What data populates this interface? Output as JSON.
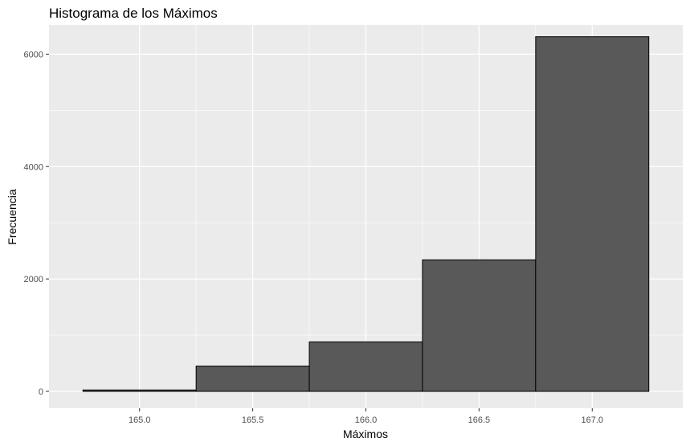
{
  "chart_data": {
    "type": "bar",
    "title": "Histograma de los Máximos",
    "xlabel": "Máximos",
    "ylabel": "Frecuencia",
    "bins": [
      {
        "x0": 164.75,
        "x1": 165.25,
        "count": 25
      },
      {
        "x0": 165.25,
        "x1": 165.75,
        "count": 450
      },
      {
        "x0": 165.75,
        "x1": 166.25,
        "count": 880
      },
      {
        "x0": 166.25,
        "x1": 166.75,
        "count": 2340
      },
      {
        "x0": 166.75,
        "x1": 167.25,
        "count": 6310
      }
    ],
    "xlim": [
      164.6,
      167.4
    ],
    "ylim": [
      -300,
      6520
    ],
    "x_ticks": [
      165.0,
      165.5,
      166.0,
      166.5,
      167.0
    ],
    "x_tick_labels": [
      "165.0",
      "165.5",
      "166.0",
      "166.5",
      "167.0"
    ],
    "x_minor_ticks": [
      165.25,
      165.75,
      166.25,
      166.75
    ],
    "y_ticks": [
      0,
      2000,
      4000,
      6000
    ],
    "y_tick_labels": [
      "0",
      "2000",
      "4000",
      "6000"
    ],
    "y_minor_ticks": [
      1000,
      3000,
      5000
    ],
    "grid": true,
    "colors": {
      "panel": "#ebebeb",
      "grid": "#ffffff",
      "bar_fill": "#595959",
      "bar_stroke": "#000000"
    }
  }
}
